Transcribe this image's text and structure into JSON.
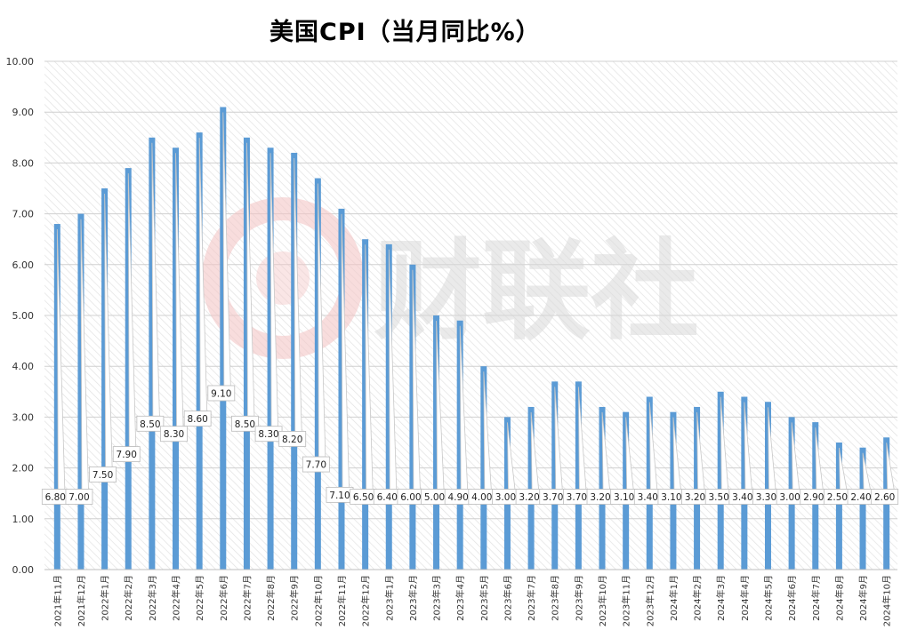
{
  "chart_data": {
    "type": "bar",
    "title": "美国CPI（当月同比%）",
    "xlabel": "",
    "ylabel": "",
    "ylim": [
      0,
      10
    ],
    "yticks": [
      "0.00",
      "1.00",
      "2.00",
      "3.00",
      "4.00",
      "5.00",
      "6.00",
      "7.00",
      "8.00",
      "9.00",
      "10.00"
    ],
    "grid": true,
    "legend": "none",
    "bar_color": "#5b9bd5",
    "categories": [
      "2021年11月",
      "2021年12月",
      "2022年1月",
      "2022年2月",
      "2022年3月",
      "2022年4月",
      "2022年5月",
      "2022年6月",
      "2022年7月",
      "2022年8月",
      "2022年9月",
      "2022年10月",
      "2022年11月",
      "2022年12月",
      "2023年1月",
      "2023年2月",
      "2023年3月",
      "2023年4月",
      "2023年5月",
      "2023年6月",
      "2023年7月",
      "2023年8月",
      "2023年9月",
      "2023年10月",
      "2023年11月",
      "2023年12月",
      "2024年1月",
      "2024年2月",
      "2024年3月",
      "2024年4月",
      "2024年5月",
      "2024年6月",
      "2024年7月",
      "2024年8月",
      "2024年9月",
      "2024年10月"
    ],
    "values": [
      6.8,
      7.0,
      7.5,
      7.9,
      8.5,
      8.3,
      8.6,
      9.1,
      8.5,
      8.3,
      8.2,
      7.7,
      7.1,
      6.5,
      6.4,
      6.0,
      5.0,
      4.9,
      4.0,
      3.0,
      3.2,
      3.7,
      3.7,
      3.2,
      3.1,
      3.4,
      3.1,
      3.2,
      3.5,
      3.4,
      3.3,
      3.0,
      2.9,
      2.5,
      2.4,
      2.6
    ],
    "data_labels": [
      "6.80",
      "7.00",
      "7.50",
      "7.90",
      "8.50",
      "8.30",
      "8.60",
      "9.10",
      "8.50",
      "8.30",
      "8.20",
      "7.70",
      "7.10",
      "6.50",
      "6.40",
      "6.00",
      "5.00",
      "4.90",
      "4.00",
      "3.00",
      "3.20",
      "3.70",
      "3.70",
      "3.20",
      "3.10",
      "3.40",
      "3.10",
      "3.20",
      "3.50",
      "3.40",
      "3.30",
      "3.00",
      "2.90",
      "2.50",
      "2.40",
      "2.60"
    ]
  },
  "watermark": {
    "text": "财联社"
  }
}
